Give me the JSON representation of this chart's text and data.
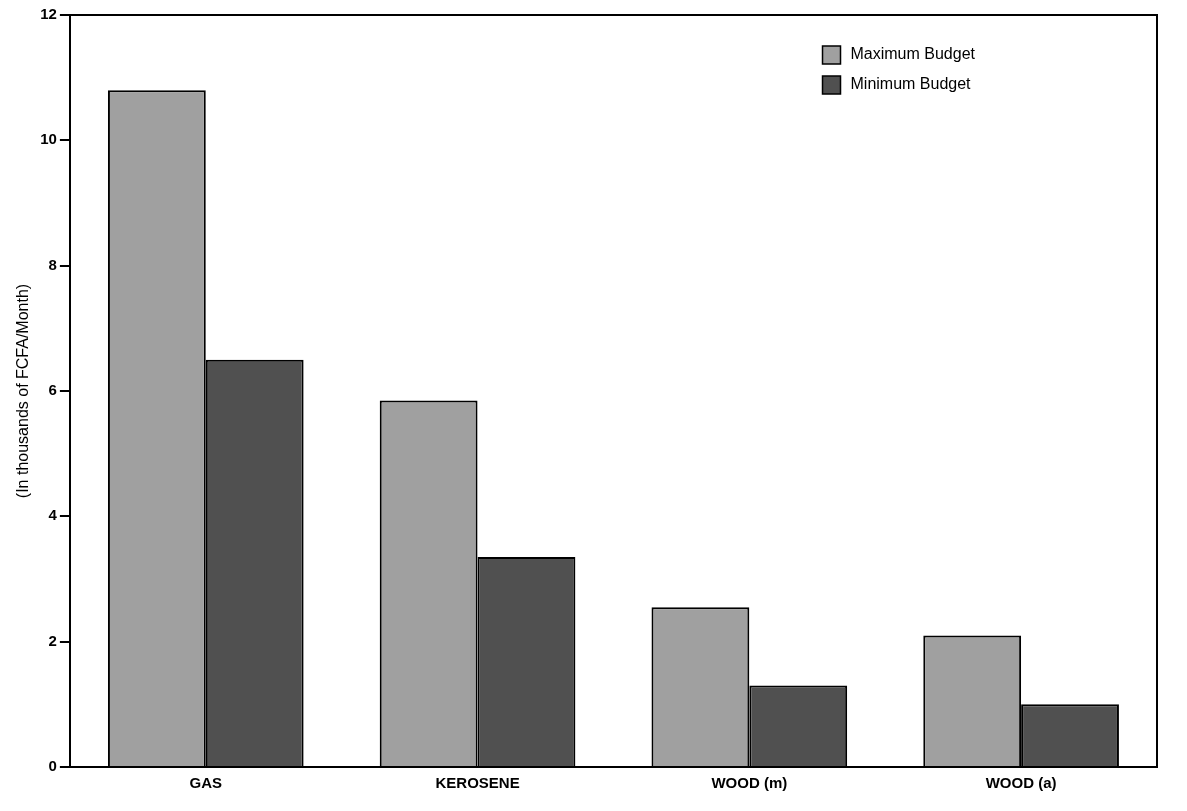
{
  "chart_data": {
    "type": "bar",
    "ylabel": "(In thousands of FCFA/Month)",
    "categories": [
      "GAS",
      "KEROSENE",
      "WOOD (m)",
      "WOOD (a)"
    ],
    "series": [
      {
        "name": "Maximum Budget",
        "color": "#a0a0a0",
        "values": [
          10.8,
          5.85,
          2.55,
          2.1
        ]
      },
      {
        "name": "Minimum Budget",
        "color": "#505050",
        "values": [
          6.5,
          3.35,
          1.3,
          1.0
        ]
      }
    ],
    "ylim": [
      0,
      12
    ],
    "yticks": [
      0,
      2,
      4,
      6,
      8,
      10,
      12
    ],
    "grid": false,
    "legend": "top right"
  }
}
